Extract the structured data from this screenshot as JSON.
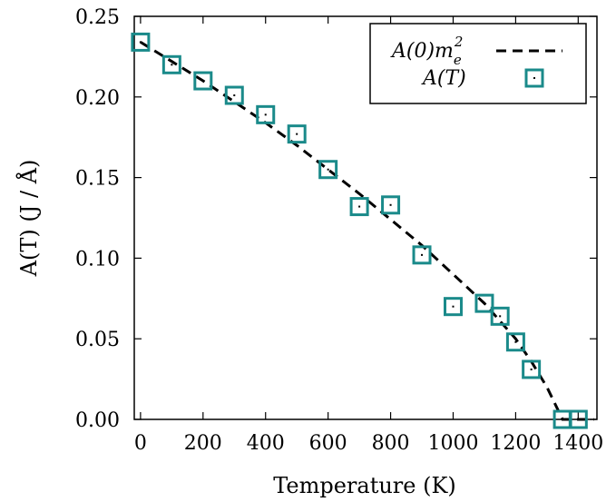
{
  "chart_data": {
    "type": "scatter",
    "xlabel": "Temperature (K)",
    "ylabel": "A(T) (J / Å)",
    "xlim": [
      -20,
      1460
    ],
    "ylim": [
      0,
      0.25
    ],
    "xticks": [
      "0",
      "200",
      "400",
      "600",
      "800",
      "1000",
      "1200",
      "1400"
    ],
    "xtick_values": [
      0,
      200,
      400,
      600,
      800,
      1000,
      1200,
      1400
    ],
    "yticks": [
      "0.00",
      "0.05",
      "0.10",
      "0.15",
      "0.20",
      "0.25"
    ],
    "ytick_values": [
      0,
      0.05,
      0.1,
      0.15,
      0.2,
      0.25
    ],
    "grid": false,
    "legend_placement": "top-right",
    "series": [
      {
        "name": "A(0)m_e^2",
        "legend_main": "A(0)m",
        "legend_sub": "e",
        "legend_sup": "2",
        "style": "dashed-line",
        "color": "#000000",
        "x": [
          0,
          100,
          200,
          300,
          400,
          500,
          600,
          700,
          800,
          900,
          1000,
          1100,
          1200,
          1250,
          1300,
          1330,
          1350,
          1400,
          1450
        ],
        "y": [
          0.234,
          0.222,
          0.21,
          0.197,
          0.184,
          0.17,
          0.155,
          0.14,
          0.124,
          0.108,
          0.09,
          0.072,
          0.05,
          0.036,
          0.02,
          0.008,
          0.0,
          0.0,
          0.0
        ]
      },
      {
        "name": "A(T)",
        "legend_label": "A(T)",
        "style": "open-square-marker",
        "color": "#1a8a8a",
        "x": [
          0,
          100,
          200,
          300,
          400,
          500,
          600,
          700,
          800,
          900,
          1000,
          1100,
          1150,
          1200,
          1250,
          1350,
          1400
        ],
        "y": [
          0.234,
          0.22,
          0.21,
          0.201,
          0.189,
          0.177,
          0.155,
          0.132,
          0.133,
          0.102,
          0.07,
          0.072,
          0.064,
          0.048,
          0.031,
          0.0,
          0.0
        ]
      }
    ]
  }
}
